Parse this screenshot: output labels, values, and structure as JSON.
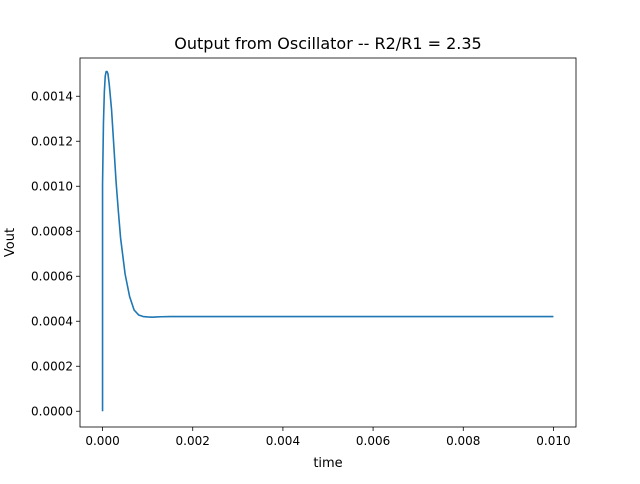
{
  "chart_data": {
    "type": "line",
    "title": "Output from Oscillator -- R2/R1 = 2.35",
    "xlabel": "time",
    "ylabel": "Vout",
    "xlim": [
      -0.0005,
      0.0105
    ],
    "ylim": [
      -7e-05,
      0.00157
    ],
    "xticks": [
      {
        "value": 0.0,
        "label": "0.000"
      },
      {
        "value": 0.002,
        "label": "0.002"
      },
      {
        "value": 0.004,
        "label": "0.004"
      },
      {
        "value": 0.006,
        "label": "0.006"
      },
      {
        "value": 0.008,
        "label": "0.008"
      },
      {
        "value": 0.01,
        "label": "0.010"
      }
    ],
    "yticks": [
      {
        "value": 0.0,
        "label": "0.0000"
      },
      {
        "value": 0.0002,
        "label": "0.0002"
      },
      {
        "value": 0.0004,
        "label": "0.0004"
      },
      {
        "value": 0.0006,
        "label": "0.0006"
      },
      {
        "value": 0.0008,
        "label": "0.0008"
      },
      {
        "value": 0.001,
        "label": "0.0010"
      },
      {
        "value": 0.0012,
        "label": "0.0012"
      },
      {
        "value": 0.0014,
        "label": "0.0014"
      }
    ],
    "grid": false,
    "legend": "none",
    "series": [
      {
        "color": "#1f77b4",
        "x": [
          0.0,
          0.0,
          2e-05,
          4e-05,
          6e-05,
          8e-05,
          0.0001,
          0.00012,
          0.00015,
          0.0002,
          0.00025,
          0.0003,
          0.00035,
          0.0004,
          0.0005,
          0.0006,
          0.0007,
          0.0008,
          0.0009,
          0.001,
          0.0011,
          0.0012,
          0.0013,
          0.0015,
          0.002,
          0.003,
          0.004,
          0.005,
          0.006,
          0.007,
          0.008,
          0.009,
          0.01
        ],
        "y": [
          0.0,
          0.00101,
          0.00128,
          0.00142,
          0.00149,
          0.00151,
          0.00151,
          0.0015,
          0.00145,
          0.00134,
          0.00118,
          0.00102,
          0.00089,
          0.00077,
          0.00061,
          0.00051,
          0.00045,
          0.000428,
          0.000421,
          0.000419,
          0.000418,
          0.000419,
          0.00042,
          0.000421,
          0.000421,
          0.000421,
          0.000421,
          0.000421,
          0.000421,
          0.000421,
          0.000421,
          0.000421,
          0.000421
        ]
      }
    ]
  }
}
